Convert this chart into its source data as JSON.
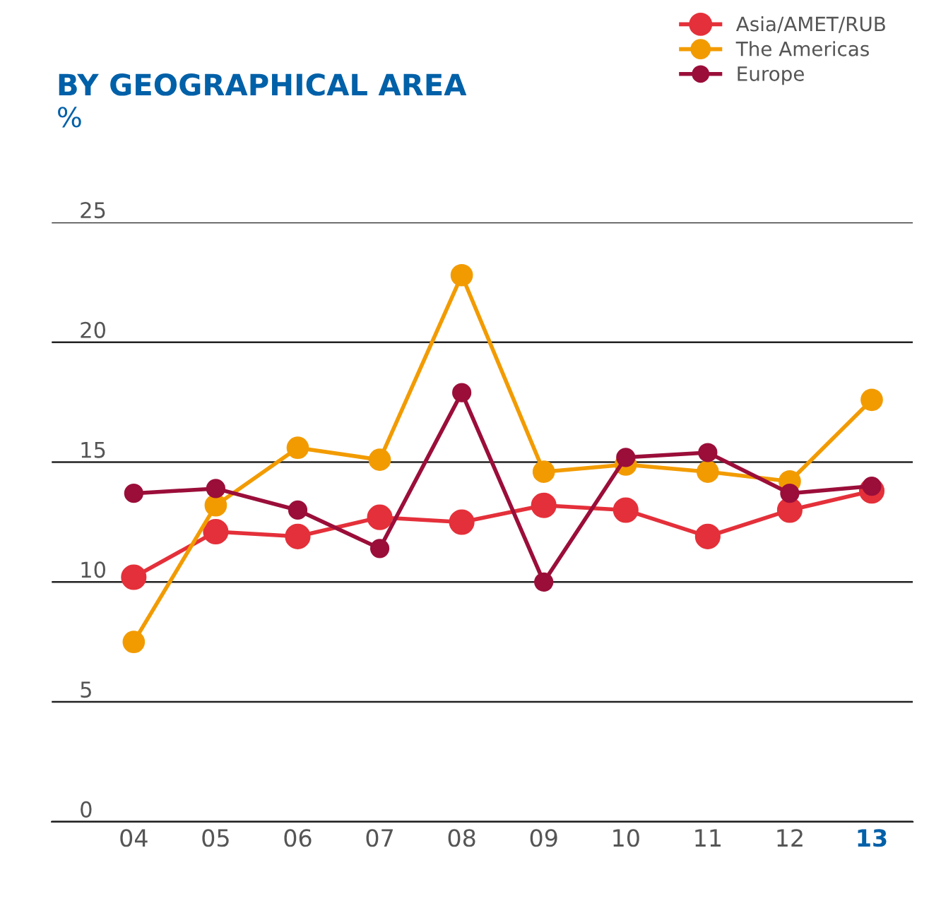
{
  "chart_data": {
    "type": "line",
    "title": "BY GEOGRAPHICAL AREA",
    "ylabel": "%",
    "categories": [
      "04",
      "05",
      "06",
      "07",
      "08",
      "09",
      "10",
      "11",
      "12",
      "13"
    ],
    "series": [
      {
        "name": "Asia/AMET/RUB",
        "color": "#e4303a",
        "values": [
          10.2,
          12.1,
          11.9,
          12.7,
          12.5,
          13.2,
          13.0,
          11.9,
          13.0,
          13.8
        ]
      },
      {
        "name": "The Americas",
        "color": "#f29b00",
        "values": [
          7.5,
          13.2,
          15.6,
          15.1,
          22.8,
          14.6,
          14.9,
          14.6,
          14.2,
          17.6
        ]
      },
      {
        "name": "Europe",
        "color": "#9b0e3a",
        "values": [
          13.7,
          13.9,
          13.0,
          11.4,
          17.9,
          10.0,
          15.2,
          15.4,
          13.7,
          14.0
        ]
      }
    ],
    "ylim": [
      0,
      25
    ],
    "yticks": [
      0,
      5,
      10,
      15,
      20,
      25
    ],
    "grid": "y",
    "legend": "top right",
    "marker": "circle",
    "line_style": "solid"
  }
}
